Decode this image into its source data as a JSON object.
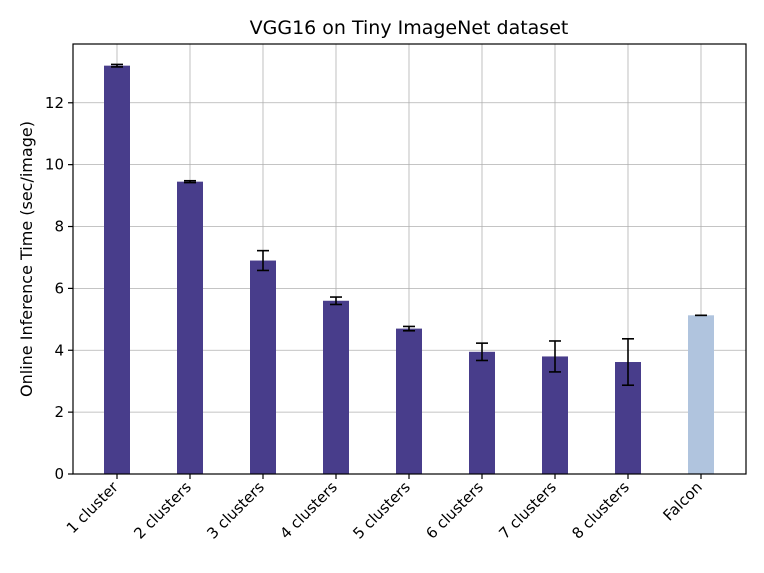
{
  "chart_data": {
    "type": "bar",
    "title": "VGG16 on Tiny ImageNet dataset",
    "xlabel": "",
    "ylabel": "Online Inference Time (sec/image)",
    "categories": [
      "1 cluster",
      "2 clusters",
      "3 clusters",
      "4 clusters",
      "5 clusters",
      "6 clusters",
      "7 clusters",
      "8 clusters",
      "Falcon"
    ],
    "values": [
      13.2,
      9.45,
      6.9,
      5.6,
      4.7,
      3.95,
      3.8,
      3.62,
      5.13
    ],
    "errors": [
      0.04,
      0.03,
      0.32,
      0.12,
      0.07,
      0.28,
      0.5,
      0.75,
      0.0
    ],
    "colors": [
      "#483d8b",
      "#483d8b",
      "#483d8b",
      "#483d8b",
      "#483d8b",
      "#483d8b",
      "#483d8b",
      "#483d8b",
      "#b0c4de"
    ],
    "ylim": [
      0,
      13.9
    ],
    "yticks": [
      0,
      2,
      4,
      6,
      8,
      10,
      12
    ],
    "grid": true
  }
}
